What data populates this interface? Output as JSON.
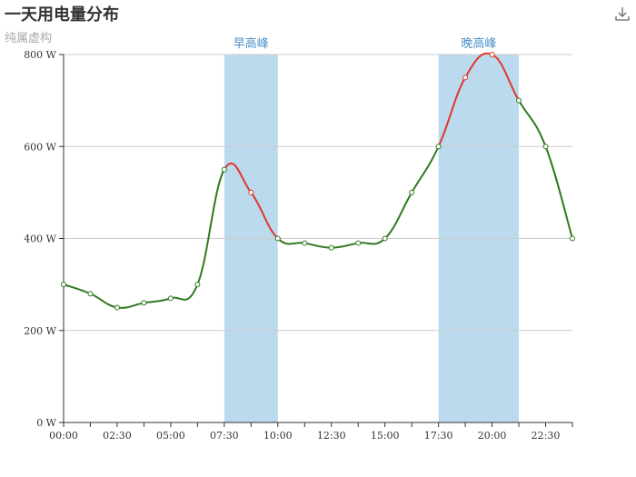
{
  "title": "一天用电量分布",
  "subtitle": "纯属虚构",
  "toolbox": {
    "download_icon": "download-icon"
  },
  "chart_data": {
    "type": "line",
    "categories": [
      "00:00",
      "01:15",
      "02:30",
      "03:45",
      "05:00",
      "06:15",
      "07:30",
      "08:45",
      "10:00",
      "11:15",
      "12:30",
      "13:45",
      "15:00",
      "16:15",
      "17:30",
      "18:45",
      "20:00",
      "21:15",
      "22:30",
      "23:45"
    ],
    "x_tick_labels": [
      "00:00",
      "02:30",
      "05:00",
      "07:30",
      "10:00",
      "12:30",
      "15:00",
      "17:30",
      "20:00",
      "22:30"
    ],
    "series": [
      {
        "values": [
          300,
          280,
          250,
          260,
          270,
          300,
          550,
          500,
          400,
          390,
          380,
          390,
          400,
          500,
          600,
          750,
          800,
          700,
          600,
          400
        ]
      }
    ],
    "ylim": [
      0,
      800
    ],
    "y_ticks": [
      0,
      200,
      400,
      600,
      800
    ],
    "y_tick_labels": [
      "0 W",
      "200 W",
      "400 W",
      "600 W",
      "800 W"
    ],
    "mark_areas": [
      {
        "name": "早高峰",
        "from": "07:30",
        "to": "10:00"
      },
      {
        "name": "晚高峰",
        "from": "17:30",
        "to": "21:15"
      }
    ],
    "colors": {
      "normal": "#2f7a1f",
      "peak": "#e0362c",
      "band": "#bcdaee",
      "band_label": "#4a90c8",
      "grid": "#cccccc"
    },
    "smooth": true,
    "grid": true
  }
}
